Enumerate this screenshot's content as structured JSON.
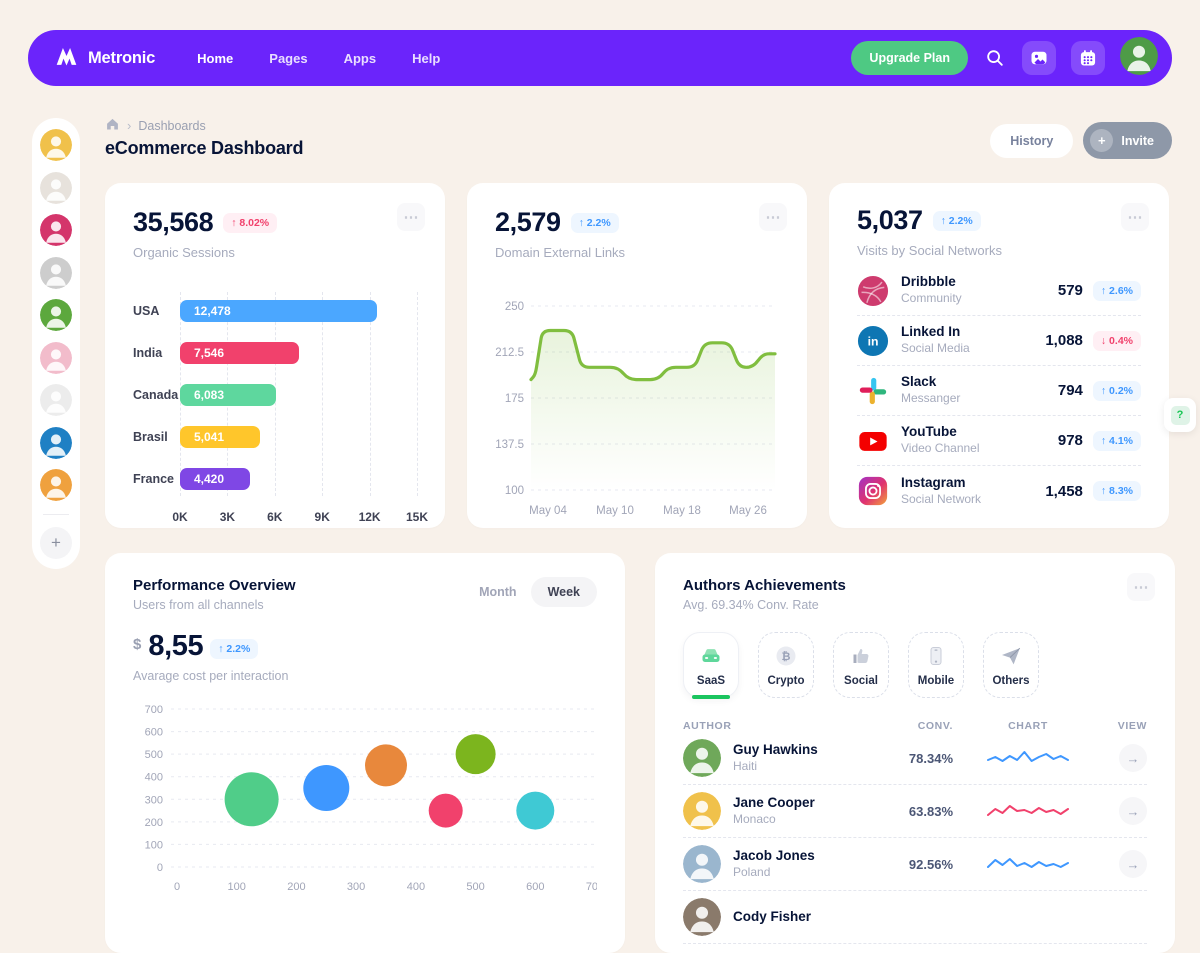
{
  "icons": {
    "dots": "⋯",
    "plus": "+",
    "chevron": "›",
    "help": "?",
    "arrow_right": "→"
  },
  "nav": {
    "brand": "Metronic",
    "items": [
      "Home",
      "Pages",
      "Apps",
      "Help"
    ],
    "upgrade": "Upgrade Plan",
    "avatar_color": "#4e9b47"
  },
  "rail": {
    "avatar_colors": [
      "#F0C14B",
      "#E7E2DC",
      "#D4356B",
      "#CDCDCD",
      "#5CA83D",
      "#F2BCCB",
      "#ECECEC",
      "#1F80C4",
      "#EFA13E"
    ]
  },
  "page": {
    "breadcrumb": "Dashboards",
    "title": "eCommerce Dashboard",
    "history": "History",
    "invite": "Invite"
  },
  "cards": {
    "organic": {
      "value": "35,568",
      "delta": "↑ 8.02%",
      "label": "Organic Sessions",
      "chart": {
        "type": "bar",
        "max": 15000,
        "ticks": [
          "0K",
          "3K",
          "6K",
          "9K",
          "12K",
          "15K"
        ],
        "bars": [
          {
            "label": "USA",
            "value": 12478,
            "display": "12,478",
            "color": "#4BA7FF"
          },
          {
            "label": "India",
            "value": 7546,
            "display": "7,546",
            "color": "#F1416C"
          },
          {
            "label": "Canada",
            "value": 6083,
            "display": "6,083",
            "color": "#5ED79E"
          },
          {
            "label": "Brasil",
            "value": 5041,
            "display": "5,041",
            "color": "#FFC62B"
          },
          {
            "label": "France",
            "value": 4420,
            "display": "4,420",
            "color": "#7F47E5"
          }
        ]
      }
    },
    "domain": {
      "value": "2,579",
      "delta": "↑ 2.2%",
      "label": "Domain External Links",
      "chart": {
        "type": "line",
        "line_color": "#80be3f",
        "y_ticks": [
          "250",
          "212.5",
          "175",
          "137.5",
          "100"
        ],
        "y_range": [
          100,
          250
        ],
        "x_ticks": [
          "May 04",
          "May 10",
          "May 18",
          "May 26"
        ],
        "points": [
          [
            0,
            190
          ],
          [
            5,
            194
          ],
          [
            13,
            230
          ],
          [
            47,
            230
          ],
          [
            58,
            200
          ],
          [
            100,
            200
          ],
          [
            112,
            190
          ],
          [
            146,
            190
          ],
          [
            157,
            200
          ],
          [
            188,
            200
          ],
          [
            199,
            220
          ],
          [
            228,
            220
          ],
          [
            239,
            200
          ],
          [
            255,
            200
          ],
          [
            266,
            211
          ],
          [
            280,
            211
          ]
        ]
      }
    },
    "social": {
      "value": "5,037",
      "delta": "↑ 2.2%",
      "label": "Visits by Social Networks",
      "rows": [
        {
          "icon": "dribbble-icon",
          "name": "Dribbble",
          "sub": "Community",
          "value": "579",
          "delta": "↑ 2.6%",
          "dir": "up"
        },
        {
          "icon": "linkedin-icon",
          "name": "Linked In",
          "sub": "Social Media",
          "value": "1,088",
          "delta": "↓ 0.4%",
          "dir": "down"
        },
        {
          "icon": "slack-icon",
          "name": "Slack",
          "sub": "Messanger",
          "value": "794",
          "delta": "↑ 0.2%",
          "dir": "up"
        },
        {
          "icon": "youtube-icon",
          "name": "YouTube",
          "sub": "Video Channel",
          "value": "978",
          "delta": "↑ 4.1%",
          "dir": "up"
        },
        {
          "icon": "instagram-icon",
          "name": "Instagram",
          "sub": "Social Network",
          "value": "1,458",
          "delta": "↑ 8.3%",
          "dir": "up"
        }
      ]
    },
    "performance": {
      "title": "Performance Overview",
      "subtitle": "Users from all channels",
      "month": "Month",
      "week": "Week",
      "currency": "$",
      "value": "8,55",
      "delta": "↑ 2.2%",
      "caption": "Avarage cost per interaction",
      "chart": {
        "type": "scatter",
        "y_ticks": [
          700,
          600,
          500,
          400,
          300,
          200,
          100,
          0
        ],
        "x_ticks": [
          0,
          100,
          200,
          300,
          400,
          500,
          600,
          700
        ],
        "bubbles": [
          {
            "x": 125,
            "y": 300,
            "r": 27,
            "color": "#50CD89"
          },
          {
            "x": 250,
            "y": 350,
            "r": 23,
            "color": "#3E97FF"
          },
          {
            "x": 350,
            "y": 450,
            "r": 21,
            "color": "#E8883C"
          },
          {
            "x": 500,
            "y": 500,
            "r": 20,
            "color": "#7CB51E"
          },
          {
            "x": 450,
            "y": 250,
            "r": 17,
            "color": "#F1416C"
          },
          {
            "x": 600,
            "y": 250,
            "r": 19,
            "color": "#3FC9D4"
          }
        ]
      }
    },
    "authors": {
      "title": "Authors Achievements",
      "subtitle": "Avg. 69.34% Conv. Rate",
      "filters": [
        {
          "icon": "car-icon",
          "label": "SaaS",
          "active": true
        },
        {
          "icon": "bitcoin-icon",
          "label": "Crypto",
          "active": false
        },
        {
          "icon": "thumb-up-icon",
          "label": "Social",
          "active": false
        },
        {
          "icon": "phone-icon",
          "label": "Mobile",
          "active": false
        },
        {
          "icon": "paper-plane-icon",
          "label": "Others",
          "active": false
        }
      ],
      "columns": [
        "AUTHOR",
        "CONV.",
        "CHART",
        "VIEW"
      ],
      "rows": [
        {
          "name": "Guy Hawkins",
          "country": "Haiti",
          "conv": "78.34%",
          "spark_color": "#3E97FF",
          "spark": [
            12,
            9,
            13,
            8,
            12,
            4,
            13,
            9,
            6,
            11,
            8,
            12
          ],
          "avatar_color": "#6FA85A"
        },
        {
          "name": "Jane Cooper",
          "country": "Monaco",
          "conv": "63.83%",
          "spark_color": "#F1416C",
          "spark": [
            14,
            8,
            12,
            5,
            10,
            9,
            12,
            7,
            11,
            9,
            13,
            8
          ],
          "avatar_color": "#F0C14B"
        },
        {
          "name": "Jacob Jones",
          "country": "Poland",
          "conv": "92.56%",
          "spark_color": "#3E97FF",
          "spark": [
            13,
            6,
            11,
            5,
            12,
            9,
            13,
            8,
            12,
            10,
            13,
            9
          ],
          "avatar_color": "#9AB6CE"
        },
        {
          "name": "Cody Fisher",
          "country": "",
          "conv": "",
          "spark_color": "#3E97FF",
          "spark": [],
          "avatar_color": "#8A7A6B"
        }
      ]
    }
  }
}
